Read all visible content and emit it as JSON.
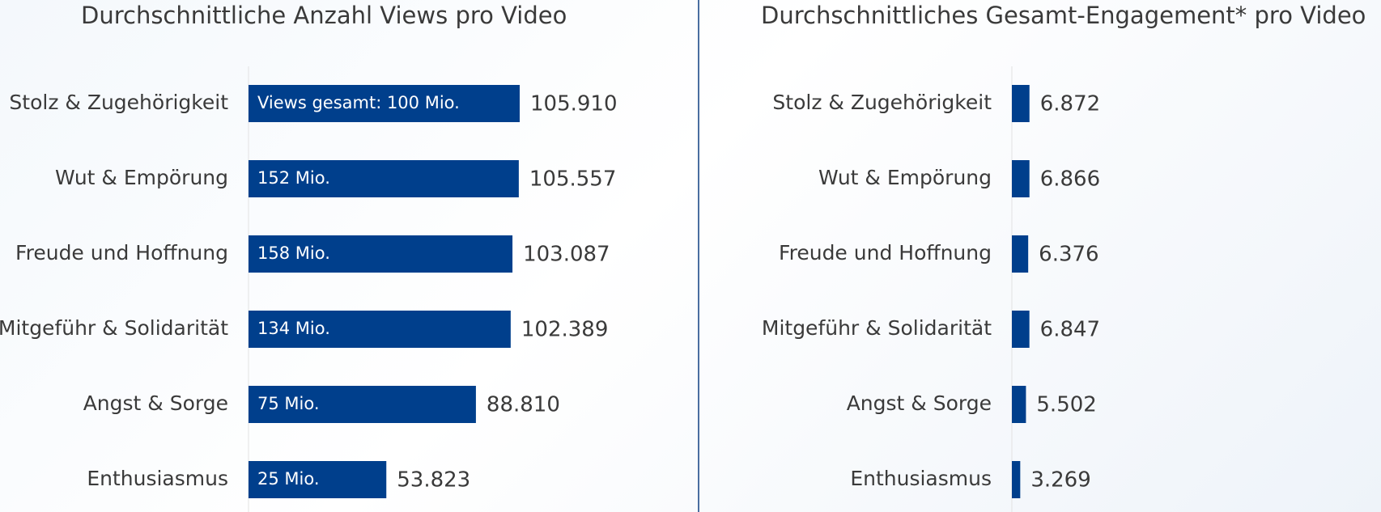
{
  "chart_data": [
    {
      "type": "bar",
      "orientation": "horizontal",
      "title": "Durchschnittliche Anzahl Views pro Video",
      "categories": [
        "Stolz & Zugehörigkeit",
        "Wut & Empörung",
        "Freude und Hoffnung",
        "Mitgeführ & Solidarität",
        "Angst & Sorge",
        "Enthusiasmus"
      ],
      "values": [
        105910,
        105557,
        103087,
        102389,
        88810,
        53823
      ],
      "value_labels": [
        "105.910",
        "105.557",
        "103.087",
        "102.389",
        "88.810",
        "53.823"
      ],
      "inner_labels": [
        "Views gesamt: 100 Mio.",
        "152 Mio.",
        "158 Mio.",
        "134 Mio.",
        "75 Mio.",
        "25 Mio."
      ],
      "xlim": [
        0,
        120000
      ],
      "bar_color": "#003f8c",
      "grid": false
    },
    {
      "type": "bar",
      "orientation": "horizontal",
      "title": "Durchschnittliches Gesamt-Engagement* pro Video",
      "categories": [
        "Stolz & Zugehörigkeit",
        "Wut & Empörung",
        "Freude und Hoffnung",
        "Mitgeführ & Solidarität",
        "Angst & Sorge",
        "Enthusiasmus"
      ],
      "values": [
        6872,
        6866,
        6376,
        6847,
        5502,
        3269
      ],
      "value_labels": [
        "6.872",
        "6.866",
        "6.376",
        "6.847",
        "5.502",
        "3.269"
      ],
      "xlim": [
        0,
        120000
      ],
      "bar_color": "#003f8c",
      "grid": false
    }
  ]
}
